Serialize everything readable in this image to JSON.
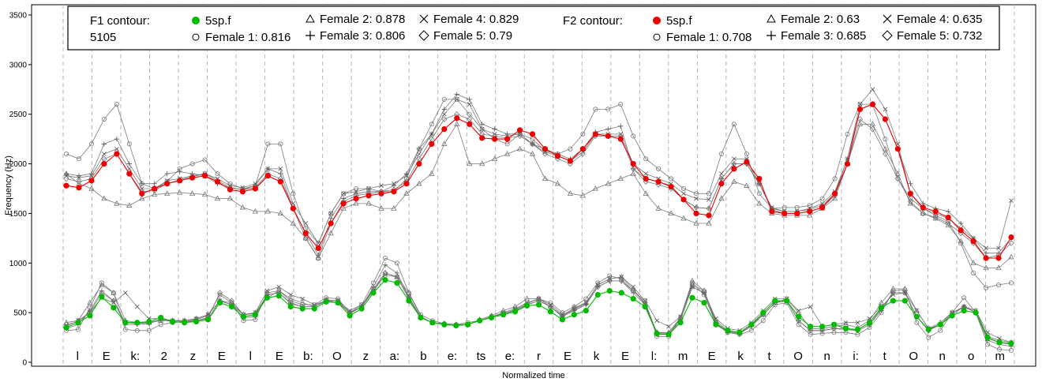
{
  "chart_data": {
    "type": "line",
    "xlabel": "Normalized time",
    "ylabel": "Frequency (Hz)",
    "ylim": [
      0,
      3600
    ],
    "yticks": [
      0,
      500,
      1000,
      1500,
      2000,
      2500,
      3000,
      3500
    ],
    "grid": "vertical dashed segment boundaries",
    "legend": {
      "position": "top",
      "f1_title": "F1 contour:",
      "f1_title_num": "5105",
      "f2_title": "F2 contour:",
      "f1_entries": [
        {
          "label": "5sp.f",
          "marker": "filled-circle",
          "color": "#00bb00"
        },
        {
          "label": "Female 1: 0.816",
          "marker": "circle"
        },
        {
          "label": "Female 2: 0.878",
          "marker": "triangle"
        },
        {
          "label": "Female 3: 0.806",
          "marker": "plus"
        },
        {
          "label": "Female 4: 0.829",
          "marker": "cross"
        },
        {
          "label": "Female 5: 0.79",
          "marker": "diamond"
        }
      ],
      "f2_entries": [
        {
          "label": "5sp.f",
          "marker": "filled-circle",
          "color": "#ee0000"
        },
        {
          "label": "Female 1: 0.708",
          "marker": "circle"
        },
        {
          "label": "Female 2: 0.63",
          "marker": "triangle"
        },
        {
          "label": "Female 3: 0.685",
          "marker": "plus"
        },
        {
          "label": "Female 4: 0.635",
          "marker": "cross"
        },
        {
          "label": "Female 5: 0.732",
          "marker": "diamond"
        }
      ]
    },
    "segments": [
      "l",
      "E",
      "k:",
      "2",
      "z",
      "E",
      "l",
      "E",
      "b:",
      "O",
      "z",
      "a:",
      "b",
      "e:",
      "ts",
      "e:",
      "r",
      "E",
      "k",
      "E",
      "l:",
      "m",
      "E",
      "k",
      "t",
      "O",
      "n",
      "i:",
      "t",
      "O",
      "n",
      "o",
      "m"
    ],
    "series": [
      {
        "name": "5sp.f",
        "formant": "F2",
        "color": "#ee0000",
        "marker": "filled-circle",
        "values": [
          1780,
          1760,
          1830,
          2000,
          2100,
          1900,
          1700,
          1750,
          1800,
          1830,
          1860,
          1880,
          1820,
          1740,
          1720,
          1750,
          1880,
          1820,
          1550,
          1300,
          1150,
          1400,
          1600,
          1650,
          1680,
          1700,
          1720,
          1800,
          2000,
          2200,
          2350,
          2460,
          2400,
          2260,
          2250,
          2250,
          2340,
          2300,
          2150,
          2080,
          2030,
          2150,
          2300,
          2280,
          2250,
          2000,
          1850,
          1820,
          1770,
          1640,
          1500,
          1480,
          1800,
          1950,
          2020,
          1850,
          1520,
          1500,
          1500,
          1520,
          1560,
          1700,
          2000,
          2550,
          2600,
          2450,
          2150,
          1700,
          1560,
          1520,
          1460,
          1330,
          1220,
          1050,
          1050,
          1260
        ]
      },
      {
        "name": "5sp.f",
        "formant": "F1",
        "color": "#00bb00",
        "marker": "filled-circle",
        "values": [
          350,
          400,
          470,
          660,
          550,
          400,
          400,
          410,
          450,
          410,
          400,
          410,
          430,
          600,
          560,
          460,
          480,
          650,
          670,
          560,
          540,
          540,
          610,
          600,
          470,
          540,
          700,
          830,
          800,
          620,
          450,
          400,
          380,
          370,
          380,
          420,
          450,
          480,
          510,
          570,
          580,
          510,
          430,
          480,
          520,
          680,
          720,
          700,
          640,
          560,
          290,
          280,
          400,
          650,
          600,
          380,
          320,
          300,
          380,
          500,
          620,
          620,
          460,
          360,
          360,
          380,
          340,
          330,
          400,
          550,
          620,
          620,
          460,
          330,
          380,
          470,
          520,
          500,
          250,
          200,
          190
        ]
      },
      {
        "name": "Female 1",
        "formant": "F2",
        "marker": "circle",
        "values": [
          2100,
          2050,
          2200,
          2450,
          2600,
          2200,
          1800,
          1750,
          1820,
          1950,
          2000,
          2040,
          1900,
          1800,
          1750,
          1780,
          2200,
          2200,
          1700,
          1350,
          1200,
          1500,
          1700,
          1750,
          1750,
          1720,
          1720,
          1850,
          2150,
          2400,
          2650,
          2650,
          2500,
          2350,
          2250,
          2200,
          2300,
          2250,
          2130,
          2100,
          2150,
          2300,
          2550,
          2550,
          2600,
          2280,
          2050,
          1950,
          1850,
          1750,
          1700,
          1700,
          2100,
          2400,
          2100,
          1700,
          1550,
          1560,
          1560,
          1580,
          1650,
          1850,
          2300,
          2600,
          2600,
          2250,
          1850,
          1650,
          1550,
          1480,
          1420,
          1200,
          900,
          750,
          780,
          800
        ]
      },
      {
        "name": "Female 1",
        "formant": "F1",
        "marker": "circle",
        "values": [
          320,
          330,
          550,
          800,
          700,
          330,
          320,
          320,
          380,
          400,
          410,
          430,
          470,
          680,
          600,
          420,
          430,
          700,
          720,
          620,
          580,
          580,
          650,
          640,
          500,
          580,
          800,
          1050,
          1000,
          700,
          480,
          420,
          390,
          380,
          400,
          420,
          460,
          490,
          530,
          590,
          640,
          600,
          500,
          560,
          640,
          800,
          870,
          840,
          720,
          620,
          260,
          260,
          450,
          800,
          680,
          380,
          300,
          280,
          320,
          420,
          580,
          600,
          380,
          280,
          290,
          300,
          300,
          280,
          350,
          500,
          720,
          730,
          400,
          250,
          320,
          500,
          650,
          500,
          180,
          130,
          120
        ]
      },
      {
        "name": "Female 2",
        "formant": "F2",
        "marker": "triangle",
        "values": [
          1900,
          1800,
          1750,
          1650,
          1600,
          1580,
          1650,
          1690,
          1700,
          1710,
          1700,
          1690,
          1650,
          1650,
          1560,
          1520,
          1520,
          1500,
          1400,
          1250,
          1050,
          1300,
          1550,
          1600,
          1600,
          1550,
          1550,
          1700,
          1800,
          1900,
          2200,
          2400,
          2000,
          2000,
          2050,
          2100,
          2150,
          2100,
          1850,
          1800,
          1700,
          1680,
          1750,
          1800,
          1850,
          1900,
          1700,
          1550,
          1500,
          1450,
          1400,
          1400,
          1650,
          1820,
          1780,
          1600,
          1500,
          1480,
          1480,
          1480,
          1550,
          1650,
          2000,
          2400,
          2400,
          2150,
          1900,
          1600,
          1500,
          1450,
          1380,
          1220,
          1000,
          950,
          950,
          1060
        ]
      },
      {
        "name": "Female 2",
        "formant": "F1",
        "marker": "triangle",
        "values": [
          400,
          420,
          600,
          780,
          700,
          420,
          400,
          400,
          420,
          420,
          420,
          440,
          480,
          620,
          600,
          480,
          500,
          650,
          720,
          640,
          600,
          560,
          620,
          600,
          500,
          560,
          720,
          900,
          860,
          700,
          460,
          400,
          390,
          380,
          380,
          430,
          470,
          520,
          560,
          640,
          640,
          560,
          460,
          550,
          600,
          780,
          840,
          860,
          740,
          580,
          300,
          300,
          450,
          820,
          720,
          420,
          320,
          300,
          380,
          480,
          600,
          640,
          500,
          340,
          340,
          360,
          380,
          350,
          420,
          600,
          740,
          740,
          520,
          340,
          400,
          500,
          560,
          520,
          260,
          220,
          200
        ]
      },
      {
        "name": "Female 3",
        "formant": "F2",
        "marker": "plus",
        "values": [
          1900,
          1880,
          1900,
          2200,
          2250,
          2000,
          1800,
          1800,
          1900,
          1920,
          1900,
          1880,
          1800,
          1760,
          1740,
          1780,
          1950,
          1900,
          1550,
          1300,
          1080,
          1450,
          1650,
          1700,
          1720,
          1720,
          1780,
          1900,
          2150,
          2300,
          2550,
          2700,
          2650,
          2400,
          2350,
          2300,
          2300,
          2200,
          2150,
          2100,
          2050,
          2150,
          2320,
          2350,
          2380,
          1950,
          1850,
          1820,
          1780,
          1640,
          1560,
          1550,
          1850,
          2000,
          2000,
          1800,
          1550,
          1520,
          1520,
          1540,
          1580,
          1700,
          2050,
          2550,
          2600,
          2450,
          2150,
          1800,
          1600,
          1550,
          1520,
          1400,
          1250,
          1100,
          1100,
          1250
        ]
      },
      {
        "name": "Female 3",
        "formant": "F1",
        "marker": "plus",
        "values": [
          340,
          380,
          520,
          720,
          620,
          380,
          380,
          390,
          430,
          420,
          410,
          420,
          440,
          620,
          580,
          450,
          460,
          680,
          700,
          590,
          560,
          560,
          620,
          620,
          490,
          560,
          760,
          980,
          900,
          660,
          450,
          400,
          380,
          370,
          380,
          420,
          460,
          490,
          520,
          580,
          620,
          560,
          460,
          520,
          580,
          760,
          820,
          820,
          700,
          580,
          280,
          280,
          420,
          760,
          700,
          400,
          300,
          290,
          360,
          480,
          600,
          620,
          420,
          320,
          320,
          340,
          330,
          320,
          380,
          520,
          700,
          700,
          460,
          320,
          380,
          480,
          560,
          500,
          220,
          180,
          160
        ]
      },
      {
        "name": "Female 4",
        "formant": "F2",
        "marker": "cross",
        "values": [
          1880,
          1860,
          1880,
          2100,
          2150,
          1950,
          1750,
          1750,
          1830,
          1850,
          1880,
          1900,
          1850,
          1780,
          1760,
          1800,
          1950,
          1950,
          1600,
          1400,
          1200,
          1500,
          1700,
          1720,
          1750,
          1780,
          1800,
          1880,
          2100,
          2300,
          2500,
          2650,
          2600,
          2350,
          2300,
          2280,
          2300,
          2200,
          2120,
          2080,
          2030,
          2120,
          2300,
          2300,
          2300,
          2000,
          1900,
          1850,
          1800,
          1700,
          1650,
          1640,
          1900,
          2050,
          2050,
          1800,
          1560,
          1520,
          1520,
          1550,
          1600,
          1720,
          2050,
          2600,
          2750,
          2550,
          2200,
          1700,
          1550,
          1500,
          1450,
          1350,
          1250,
          1150,
          1150,
          1630
        ]
      },
      {
        "name": "Female 4",
        "formant": "F1",
        "marker": "cross",
        "values": [
          360,
          420,
          500,
          650,
          600,
          700,
          560,
          440,
          440,
          420,
          420,
          440,
          480,
          620,
          580,
          480,
          500,
          720,
          760,
          680,
          640,
          580,
          620,
          620,
          520,
          580,
          720,
          880,
          860,
          660,
          450,
          400,
          380,
          370,
          380,
          420,
          460,
          500,
          540,
          600,
          640,
          580,
          480,
          540,
          600,
          780,
          840,
          860,
          760,
          620,
          420,
          360,
          460,
          760,
          700,
          440,
          340,
          320,
          400,
          520,
          640,
          640,
          520,
          560,
          360,
          380,
          400,
          400,
          440,
          560,
          680,
          700,
          520,
          340,
          380,
          500,
          560,
          520,
          300,
          240,
          200
        ]
      },
      {
        "name": "Female 5",
        "formant": "F2",
        "marker": "diamond",
        "values": [
          1850,
          1820,
          1850,
          2050,
          2100,
          1900,
          1720,
          1730,
          1800,
          1840,
          1870,
          1900,
          1830,
          1760,
          1740,
          1760,
          1900,
          1850,
          1550,
          1250,
          1050,
          1400,
          1620,
          1680,
          1700,
          1720,
          1740,
          1820,
          2050,
          2250,
          2450,
          2500,
          2450,
          2300,
          2280,
          2260,
          2280,
          2200,
          2100,
          2050,
          2000,
          2100,
          2280,
          2280,
          2280,
          1950,
          1820,
          1790,
          1750,
          1640,
          1560,
          1550,
          1850,
          2000,
          2000,
          1800,
          1540,
          1500,
          1500,
          1520,
          1560,
          1680,
          2000,
          2450,
          2350,
          2100,
          1850,
          1620,
          1500,
          1460,
          1400,
          1300,
          1200,
          1050,
          1080,
          1200
        ]
      },
      {
        "name": "Female 5",
        "formant": "F1",
        "marker": "diamond",
        "values": [
          380,
          410,
          500,
          700,
          620,
          400,
          390,
          400,
          430,
          410,
          400,
          420,
          450,
          700,
          620,
          480,
          490,
          680,
          700,
          600,
          560,
          560,
          630,
          620,
          490,
          560,
          740,
          900,
          860,
          640,
          450,
          400,
          380,
          370,
          380,
          420,
          460,
          490,
          520,
          580,
          620,
          560,
          470,
          530,
          590,
          760,
          820,
          820,
          720,
          600,
          300,
          290,
          440,
          780,
          720,
          400,
          310,
          290,
          370,
          480,
          600,
          620,
          420,
          320,
          320,
          340,
          340,
          320,
          380,
          540,
          700,
          700,
          460,
          320,
          380,
          480,
          560,
          500,
          240,
          200,
          180
        ]
      }
    ]
  }
}
